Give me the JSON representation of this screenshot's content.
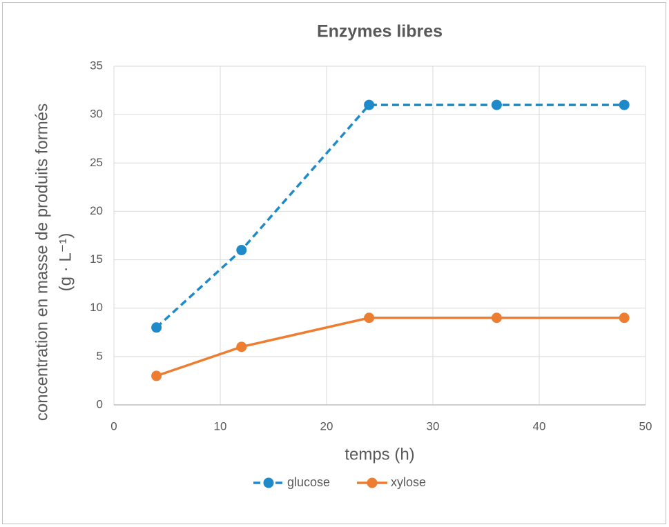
{
  "chart_data": {
    "type": "line",
    "title": "Enzymes libres",
    "xlabel": "temps (h)",
    "ylabel": [
      "concentration en masse de produits formés",
      "(g · L⁻¹)"
    ],
    "x": [
      4,
      12,
      24,
      36,
      48
    ],
    "series": [
      {
        "name": "glucose",
        "color": "#1f8ac9",
        "dashed": true,
        "values": [
          8,
          16,
          31,
          31,
          31
        ]
      },
      {
        "name": "xylose",
        "color": "#ed7d31",
        "dashed": false,
        "values": [
          3,
          6,
          9,
          9,
          9
        ]
      }
    ],
    "xlim": [
      0,
      50
    ],
    "xticks": [
      0,
      10,
      20,
      30,
      40,
      50
    ],
    "ylim": [
      0,
      35
    ],
    "yticks": [
      0,
      5,
      10,
      15,
      20,
      25,
      30,
      35
    ],
    "grid": true,
    "legend": "bottom"
  }
}
